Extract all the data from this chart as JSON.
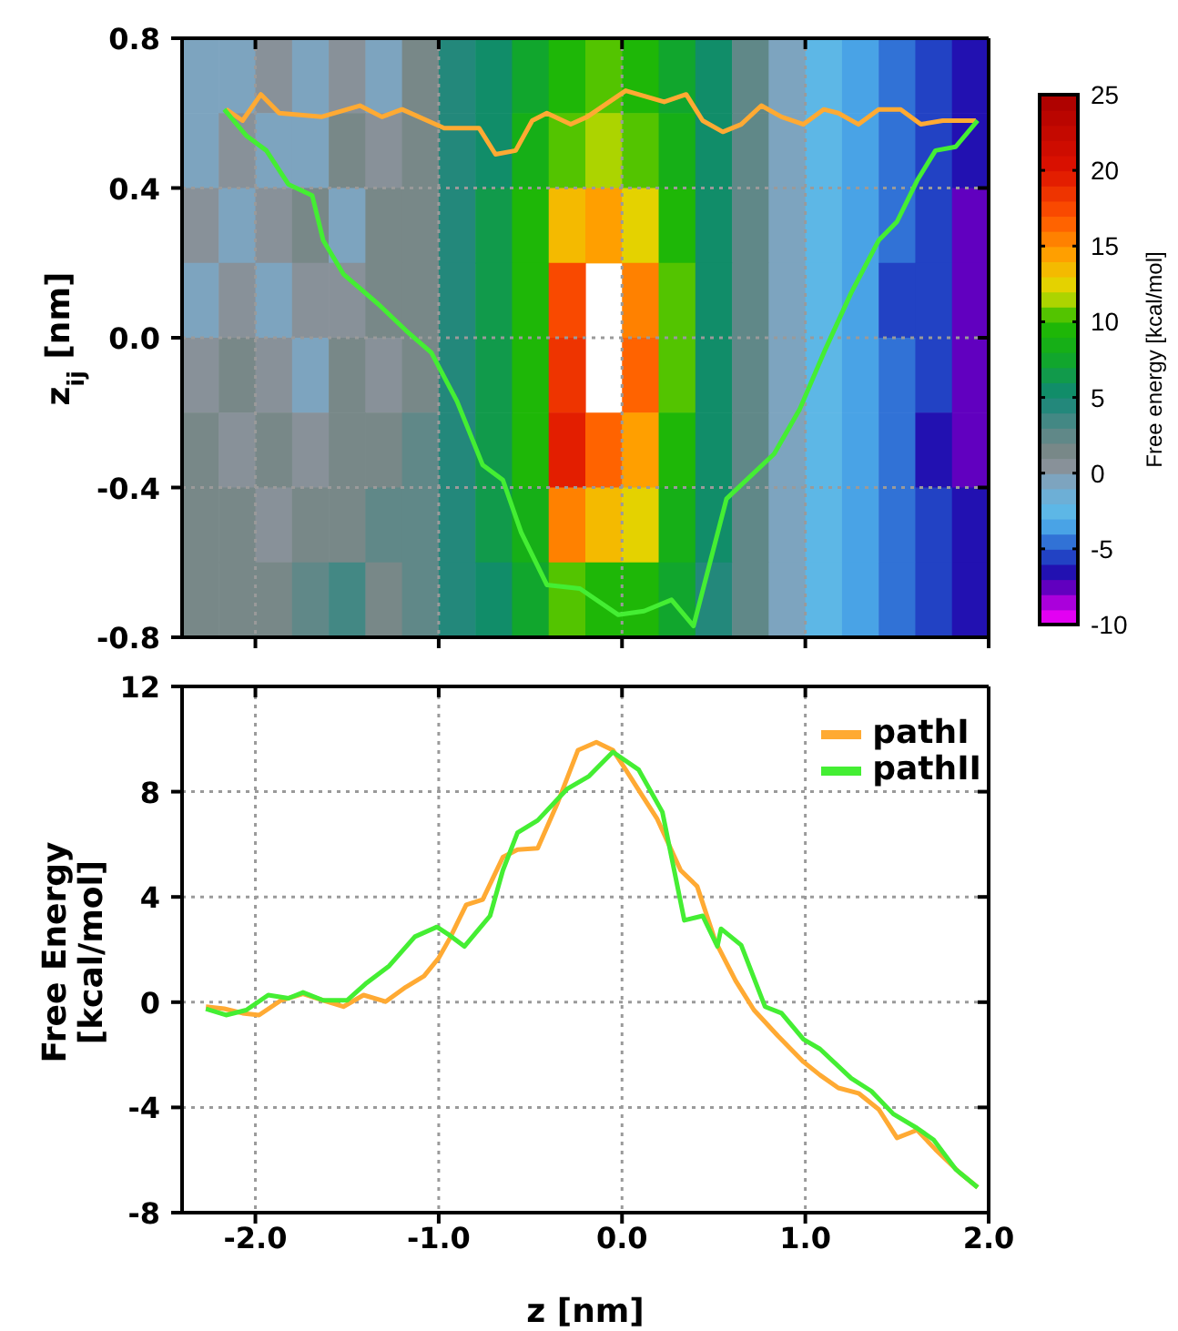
{
  "chart_data": [
    {
      "type": "heatmap",
      "clabel": "Free energy [kcal/mol]",
      "clim": [
        -10,
        25
      ],
      "cticks": [
        -10,
        -5,
        0,
        5,
        10,
        15,
        20,
        25
      ],
      "categories": [
        null,
        null,
        null,
        null,
        null,
        null,
        null,
        null,
        null,
        null,
        null,
        null,
        null,
        null,
        null,
        null,
        null,
        null,
        null,
        null,
        null,
        null
      ],
      "y_categories": [
        null,
        null,
        null,
        null,
        null,
        null,
        null,
        null
      ],
      "cells": [
        [
          -1,
          -1,
          0,
          -1,
          0,
          -1,
          1,
          4,
          5,
          7,
          9,
          10,
          9,
          7,
          5,
          2,
          -1,
          -3,
          -4,
          -5,
          -6,
          -7
        ],
        [
          -1,
          0,
          -1,
          -1,
          1,
          0,
          1,
          4,
          5,
          8,
          10,
          11,
          10,
          8,
          5,
          2,
          -1,
          -3,
          -4,
          -5,
          -6,
          -7
        ],
        [
          0,
          -1,
          0,
          1,
          -1,
          1,
          1,
          4,
          6,
          9,
          13,
          14,
          12,
          9,
          5,
          2,
          -1,
          -3,
          -4,
          -5,
          -6,
          -8
        ],
        [
          -1,
          0,
          -1,
          0,
          0,
          1,
          1,
          4,
          6,
          9,
          17,
          null,
          15,
          10,
          5,
          2,
          -1,
          -3,
          -4,
          -6,
          -6,
          -8
        ],
        [
          0,
          1,
          0,
          -1,
          1,
          0,
          1,
          4,
          6,
          9,
          18,
          null,
          16,
          10,
          5,
          2,
          -1,
          -3,
          -4,
          -5,
          -6,
          -8
        ],
        [
          1,
          0,
          1,
          0,
          1,
          1,
          2,
          4,
          6,
          9,
          19,
          16,
          14,
          9,
          5,
          2,
          -1,
          -3,
          -4,
          -5,
          -7,
          -8
        ],
        [
          1,
          1,
          0,
          1,
          1,
          2,
          2,
          4,
          6,
          8,
          15,
          13,
          12,
          8,
          5,
          2,
          -1,
          -3,
          -4,
          -5,
          -6,
          -7
        ],
        [
          1,
          1,
          1,
          2,
          3,
          1,
          2,
          4,
          5,
          7,
          10,
          9,
          9,
          7,
          4,
          2,
          -1,
          -3,
          -4,
          -5,
          -6,
          -7
        ]
      ]
    },
    {
      "type": "line",
      "ylabel": "z$_{ij}$ [nm]",
      "xlim": [
        -2.4,
        2.0
      ],
      "xticks": [
        -2,
        -1,
        0,
        1,
        2
      ],
      "ylim": [
        -0.8,
        0.8
      ],
      "yticks": [
        {
          "value": 0.8,
          "label": "0.8"
        },
        {
          "value": 0.4,
          "label": "0.4"
        },
        {
          "value": 0,
          "label": "0.0"
        },
        {
          "value": -0.4,
          "label": "-0.4"
        },
        {
          "value": -0.8,
          "label": "-0.8"
        }
      ],
      "tick_labels": "y",
      "grid": true,
      "series": [
        {
          "color": "#ffaa33",
          "x": [
            -2.16,
            -2.07,
            -1.97,
            -1.87,
            -1.64,
            -1.43,
            -1.31,
            -1.2,
            -0.97,
            -0.78,
            -0.69,
            -0.58,
            -0.49,
            -0.41,
            -0.28,
            -0.19,
            0.02,
            0.23,
            0.35,
            0.44,
            0.55,
            0.65,
            0.76,
            0.87,
            0.99,
            1.1,
            1.18,
            1.29,
            1.4,
            1.52,
            1.63,
            1.75,
            1.93
          ],
          "values": [
            0.61,
            0.58,
            0.65,
            0.6,
            0.59,
            0.62,
            0.59,
            0.61,
            0.56,
            0.56,
            0.49,
            0.5,
            0.58,
            0.6,
            0.57,
            0.59,
            0.66,
            0.63,
            0.65,
            0.58,
            0.55,
            0.57,
            0.62,
            0.59,
            0.57,
            0.61,
            0.6,
            0.57,
            0.61,
            0.61,
            0.57,
            0.58,
            0.58
          ]
        },
        {
          "color": "#44ee33",
          "x": [
            -2.17,
            -2.05,
            -1.94,
            -1.82,
            -1.69,
            -1.63,
            -1.52,
            -1.33,
            -1.18,
            -1.04,
            -0.9,
            -0.76,
            -0.65,
            -0.55,
            -0.41,
            -0.23,
            -0.02,
            0.12,
            0.27,
            0.39,
            0.57,
            0.83,
            0.97,
            1.11,
            1.25,
            1.4,
            1.5,
            1.61,
            1.71,
            1.82,
            1.94
          ],
          "values": [
            0.61,
            0.54,
            0.5,
            0.41,
            0.38,
            0.26,
            0.17,
            0.09,
            0.02,
            -0.04,
            -0.17,
            -0.34,
            -0.38,
            -0.52,
            -0.66,
            -0.67,
            -0.74,
            -0.73,
            -0.7,
            -0.77,
            -0.43,
            -0.31,
            -0.19,
            -0.03,
            0.12,
            0.26,
            0.31,
            0.42,
            0.5,
            0.51,
            0.58
          ]
        }
      ]
    },
    {
      "type": "line",
      "xlabel": "z [nm]",
      "ylabel": "Free Energy\n[kcal/mol]",
      "xlim": [
        -2.4,
        2.0
      ],
      "xticks": [
        {
          "value": -2,
          "label": "-2.0"
        },
        {
          "value": -1,
          "label": "-1.0"
        },
        {
          "value": 0,
          "label": "0.0"
        },
        {
          "value": 1,
          "label": "1.0"
        },
        {
          "value": 2,
          "label": "2.0"
        }
      ],
      "ylim": [
        -8,
        12
      ],
      "yticks": [
        -8,
        -4,
        0,
        4,
        8,
        12
      ],
      "grid": true,
      "legend": "top right",
      "series": [
        {
          "name": "pathI",
          "color": "#ffaa33",
          "x": [
            -2.27,
            -2.17,
            -2.07,
            -1.98,
            -1.86,
            -1.74,
            -1.63,
            -1.52,
            -1.41,
            -1.29,
            -1.18,
            -1.08,
            -1.0,
            -0.94,
            -0.85,
            -0.76,
            -0.65,
            -0.57,
            -0.46,
            -0.35,
            -0.24,
            -0.14,
            -0.05,
            0.02,
            0.11,
            0.19,
            0.32,
            0.41,
            0.51,
            0.62,
            0.72,
            0.85,
            0.99,
            1.08,
            1.18,
            1.29,
            1.4,
            1.5,
            1.61,
            1.71,
            1.84,
            1.94
          ],
          "values": [
            -0.17,
            -0.25,
            -0.42,
            -0.49,
            0.07,
            0.32,
            0.07,
            -0.17,
            0.27,
            0.02,
            0.57,
            0.99,
            1.68,
            2.42,
            3.7,
            3.9,
            5.51,
            5.8,
            5.85,
            7.6,
            9.58,
            9.88,
            9.58,
            8.84,
            7.85,
            6.99,
            5.01,
            4.4,
            2.3,
            0.81,
            -0.3,
            -1.28,
            -2.27,
            -2.77,
            -3.26,
            -3.46,
            -4.07,
            -5.16,
            -4.86,
            -5.6,
            -6.47,
            -7.04
          ]
        },
        {
          "name": "pathII",
          "color": "#44ee33",
          "x": [
            -2.27,
            -2.16,
            -2.05,
            -1.93,
            -1.82,
            -1.74,
            -1.63,
            -1.5,
            -1.4,
            -1.27,
            -1.13,
            -1.01,
            -0.94,
            -0.86,
            -0.72,
            -0.65,
            -0.57,
            -0.46,
            -0.3,
            -0.18,
            -0.05,
            0.09,
            0.22,
            0.34,
            0.44,
            0.52,
            0.54,
            0.65,
            0.78,
            0.87,
            0.99,
            1.08,
            1.25,
            1.36,
            1.48,
            1.61,
            1.7,
            1.82,
            1.94
          ],
          "values": [
            -0.25,
            -0.49,
            -0.3,
            0.27,
            0.15,
            0.37,
            0.07,
            0.07,
            0.69,
            1.38,
            2.49,
            2.86,
            2.54,
            2.12,
            3.28,
            5.01,
            6.44,
            6.91,
            8.1,
            8.59,
            9.51,
            8.84,
            7.23,
            3.11,
            3.28,
            2.12,
            2.79,
            2.17,
            -0.17,
            -0.42,
            -1.41,
            -1.78,
            -2.89,
            -3.38,
            -4.25,
            -4.79,
            -5.23,
            -6.35,
            -7.04
          ]
        }
      ]
    }
  ]
}
